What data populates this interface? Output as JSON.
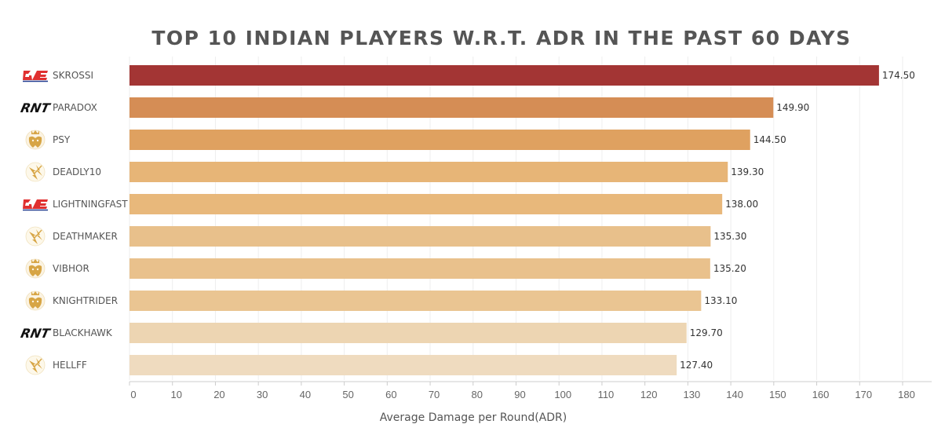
{
  "chart_data": {
    "type": "bar",
    "orientation": "horizontal",
    "title": "TOP 10 INDIAN PLAYERS W.R.T. ADR IN THE PAST 60 DAYS",
    "xlabel": "Average Damage per Round(ADR)",
    "ylabel": "",
    "xlim": [
      0,
      180
    ],
    "xticks": [
      0,
      10,
      20,
      30,
      40,
      50,
      60,
      70,
      80,
      90,
      100,
      110,
      120,
      130,
      140,
      150,
      160,
      170,
      180
    ],
    "grid": true,
    "categories": [
      "SKROSSI",
      "PARADOX",
      "PSY",
      "DEADLY10",
      "LIGHTNINGFAST",
      "DEATHMAKER",
      "VIBHOR",
      "KNIGHTRIDER",
      "BLACKHAWK",
      "HELLFF"
    ],
    "values": [
      174.5,
      149.9,
      144.5,
      139.3,
      138.0,
      135.3,
      135.2,
      133.1,
      129.7,
      127.4
    ],
    "value_labels": [
      "174.50",
      "149.90",
      "144.50",
      "139.30",
      "138.00",
      "135.30",
      "135.20",
      "133.10",
      "129.70",
      "127.40"
    ],
    "team_logos": [
      "ge-logo",
      "rnt-logo",
      "crown-lion-logo",
      "lightning-shield-logo",
      "ge-logo",
      "lightning-shield-logo",
      "crown-lion-logo",
      "crown-lion-logo",
      "rnt-logo",
      "lightning-shield-logo"
    ],
    "bar_colors": [
      "#a33534",
      "#d58d55",
      "#dfa160",
      "#e7b577",
      "#e8b87b",
      "#e8c08b",
      "#e9c18c",
      "#eac592",
      "#edd5b2",
      "#efdbbf"
    ]
  },
  "colors": {
    "grid": "#eeeeee",
    "axis": "#cccccc",
    "ge_red": "#e03030",
    "ge_blue": "#1f3a8f",
    "logo_gold": "#d7a545"
  }
}
